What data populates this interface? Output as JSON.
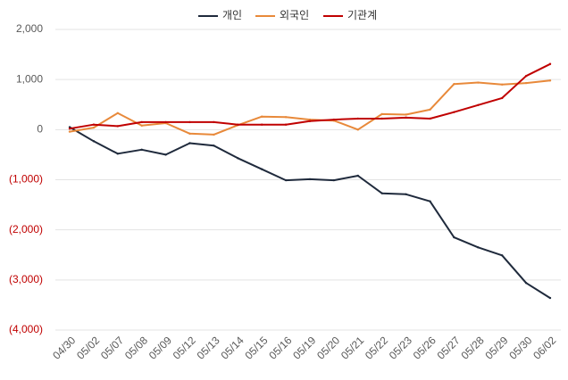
{
  "chart_data": {
    "type": "line",
    "title": "",
    "xlabel": "",
    "ylabel": "",
    "ylim": [
      -4000,
      2000
    ],
    "yticks": [
      2000,
      1000,
      0,
      -1000,
      -2000,
      -3000,
      -4000
    ],
    "ytick_labels": [
      "2,000",
      "1,000",
      "0",
      "(1,000)",
      "(2,000)",
      "(3,000)",
      "(4,000)"
    ],
    "negative_tick_color": "#c00000",
    "positive_tick_color": "#595959",
    "grid": "horizontal",
    "legend_position": "top-center",
    "categories": [
      "04/30",
      "05/02",
      "05/07",
      "05/08",
      "05/09",
      "05/12",
      "05/13",
      "05/14",
      "05/15",
      "05/16",
      "05/19",
      "05/20",
      "05/21",
      "05/22",
      "05/23",
      "05/26",
      "05/27",
      "05/28",
      "05/29",
      "05/30",
      "06/02"
    ],
    "series": [
      {
        "name": "개인",
        "color": "#1f2a3c",
        "values": [
          50,
          -230,
          -480,
          -400,
          -500,
          -270,
          -320,
          -570,
          -790,
          -1010,
          -990,
          -1010,
          -920,
          -1270,
          -1290,
          -1430,
          -2150,
          -2350,
          -2510,
          -3060,
          -3360
        ]
      },
      {
        "name": "외국인",
        "color": "#e8893a",
        "values": [
          -40,
          40,
          330,
          80,
          130,
          -80,
          -100,
          90,
          260,
          250,
          200,
          180,
          0,
          310,
          300,
          400,
          910,
          940,
          900,
          930,
          980
        ]
      },
      {
        "name": "기관계",
        "color": "#c00000",
        "values": [
          20,
          100,
          70,
          150,
          150,
          150,
          150,
          100,
          100,
          100,
          170,
          200,
          220,
          220,
          240,
          220,
          350,
          490,
          630,
          1070,
          1310
        ]
      }
    ]
  }
}
